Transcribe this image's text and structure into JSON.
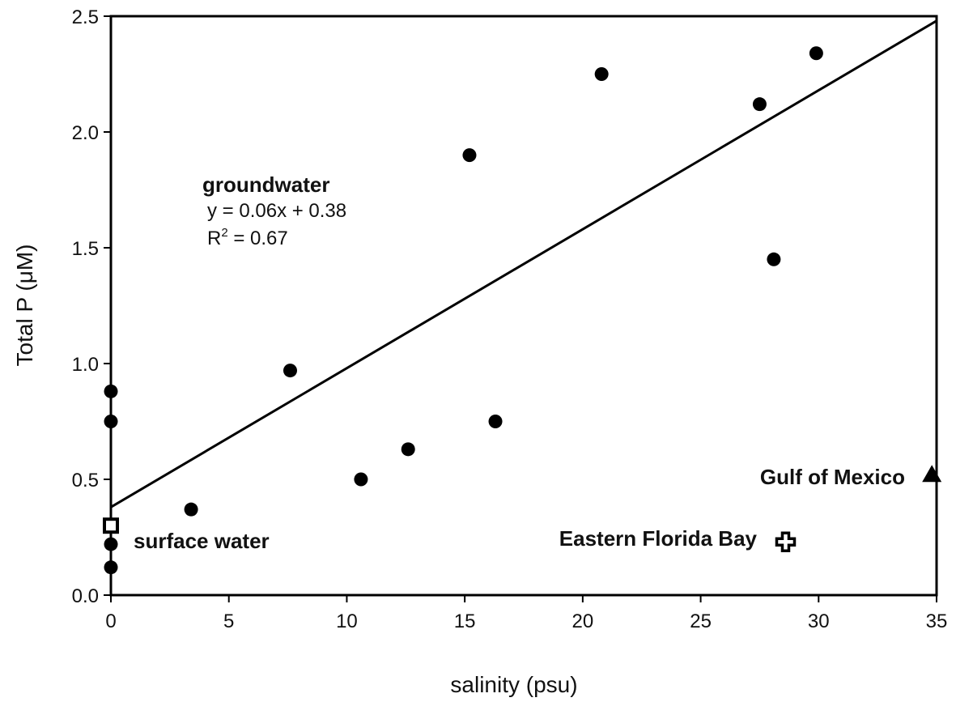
{
  "chart_data": {
    "type": "scatter",
    "xlabel": "salinity (psu)",
    "ylabel": "Total P (μM)",
    "xlim": [
      0,
      35
    ],
    "ylim": [
      0,
      2.5
    ],
    "x_ticks": [
      "0",
      "5",
      "10",
      "15",
      "20",
      "25",
      "30",
      "35"
    ],
    "y_ticks": [
      "0.0",
      "0.5",
      "1.0",
      "1.5",
      "2.0",
      "2.5"
    ],
    "grid": false,
    "series": [
      {
        "marker": "filled-circle",
        "points": [
          {
            "x": 0,
            "y": 0.88
          },
          {
            "x": 0,
            "y": 0.75
          },
          {
            "x": 0,
            "y": 0.22
          },
          {
            "x": 0,
            "y": 0.12
          },
          {
            "x": 3.4,
            "y": 0.37
          },
          {
            "x": 7.6,
            "y": 0.97
          },
          {
            "x": 10.6,
            "y": 0.5
          },
          {
            "x": 12.6,
            "y": 0.63
          },
          {
            "x": 15.2,
            "y": 1.9
          },
          {
            "x": 16.3,
            "y": 0.75
          },
          {
            "x": 20.8,
            "y": 2.25
          },
          {
            "x": 27.5,
            "y": 2.12
          },
          {
            "x": 28.1,
            "y": 1.45
          },
          {
            "x": 29.9,
            "y": 2.34
          }
        ]
      },
      {
        "marker": "open-square",
        "points": [
          {
            "x": 0,
            "y": 0.3
          }
        ]
      },
      {
        "marker": "open-cross",
        "points": [
          {
            "x": 28.6,
            "y": 0.23
          }
        ]
      },
      {
        "marker": "filled-triangle",
        "points": [
          {
            "x": 34.8,
            "y": 0.52
          }
        ]
      }
    ],
    "trendline": {
      "slope": 0.06,
      "intercept": 0.38,
      "x_range": [
        0,
        35
      ]
    },
    "annotations": {
      "groundwater": "groundwater",
      "equation": "y = 0.06x + 0.38",
      "r2_prefix": "R",
      "r2_sup": "2",
      "r2_suffix": " = 0.67",
      "surface_water": "surface water",
      "eastern_florida_bay": "Eastern Florida Bay",
      "gulf_of_mexico": "Gulf of Mexico"
    }
  }
}
